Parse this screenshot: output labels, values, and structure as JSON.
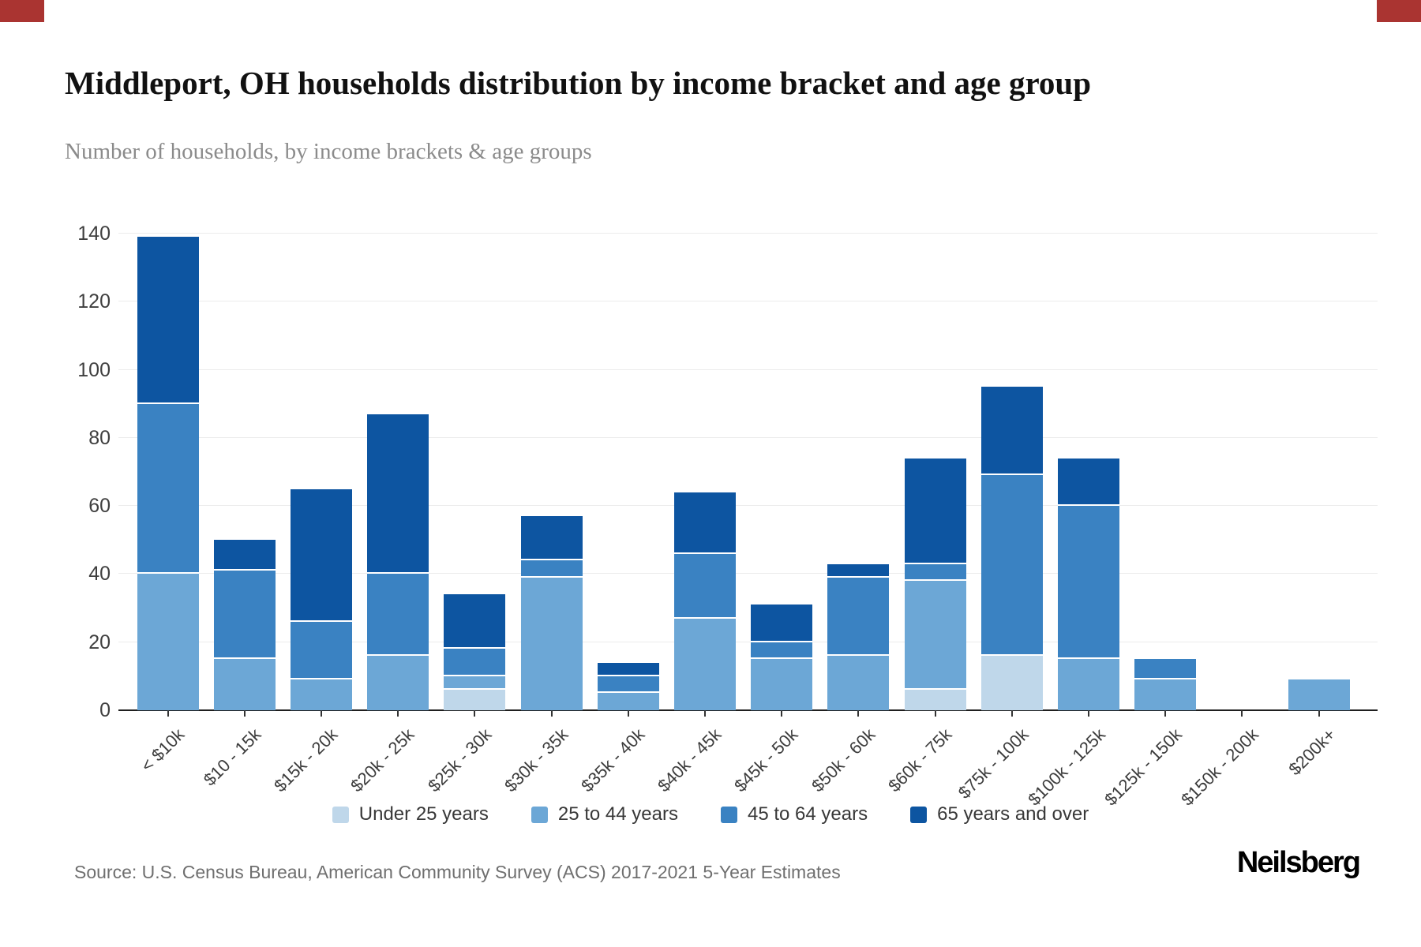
{
  "header": {
    "title": "Middleport, OH households distribution by income bracket and age group",
    "subtitle": "Number of households, by income brackets & age groups"
  },
  "accents": {
    "corner_mark_color": "#aa3431",
    "axis_line_color": "#1f1f1f",
    "gridline_color": "#ececec"
  },
  "chart_data": {
    "type": "bar",
    "stacked": true,
    "categories": [
      "< $10k",
      "$10 - 15k",
      "$15k - 20k",
      "$20k - 25k",
      "$25k - 30k",
      "$30k - 35k",
      "$35k - 40k",
      "$40k - 45k",
      "$45k - 50k",
      "$50k - 60k",
      "$60k - 75k",
      "$75k - 100k",
      "$100k - 125k",
      "$125k - 150k",
      "$150k - 200k",
      "$200k+"
    ],
    "series": [
      {
        "name": "Under 25 years",
        "color": "#bfd7ea",
        "values": [
          0,
          0,
          0,
          0,
          6,
          0,
          0,
          0,
          0,
          0,
          6,
          16,
          0,
          0,
          0,
          0
        ]
      },
      {
        "name": "25 to 44 years",
        "color": "#6ca7d6",
        "values": [
          40,
          15,
          9,
          16,
          4,
          39,
          5,
          27,
          15,
          16,
          32,
          0,
          15,
          9,
          0,
          9
        ]
      },
      {
        "name": "45 to 64 years",
        "color": "#3a82c2",
        "values": [
          50,
          26,
          17,
          24,
          8,
          5,
          5,
          19,
          5,
          23,
          5,
          53,
          45,
          6,
          0,
          0
        ]
      },
      {
        "name": "65 years and over",
        "color": "#0d55a1",
        "values": [
          49,
          9,
          39,
          47,
          16,
          13,
          4,
          18,
          11,
          4,
          31,
          26,
          14,
          0,
          0,
          0
        ]
      }
    ],
    "totals": [
      139,
      50,
      65,
      87,
      34,
      57,
      14,
      64,
      31,
      43,
      74,
      95,
      74,
      15,
      0,
      9
    ],
    "title": "Middleport, OH households distribution by income bracket and age group",
    "xlabel": "",
    "ylabel": "",
    "ylim": [
      0,
      140
    ],
    "ytick_step": 20,
    "yticks": [
      0,
      20,
      40,
      60,
      80,
      100,
      120,
      140
    ],
    "grid": true,
    "legend_position": "bottom"
  },
  "footer": {
    "source": "Source: U.S. Census Bureau, American Community Survey (ACS) 2017-2021 5-Year Estimates",
    "logo": "Neilsberg"
  }
}
